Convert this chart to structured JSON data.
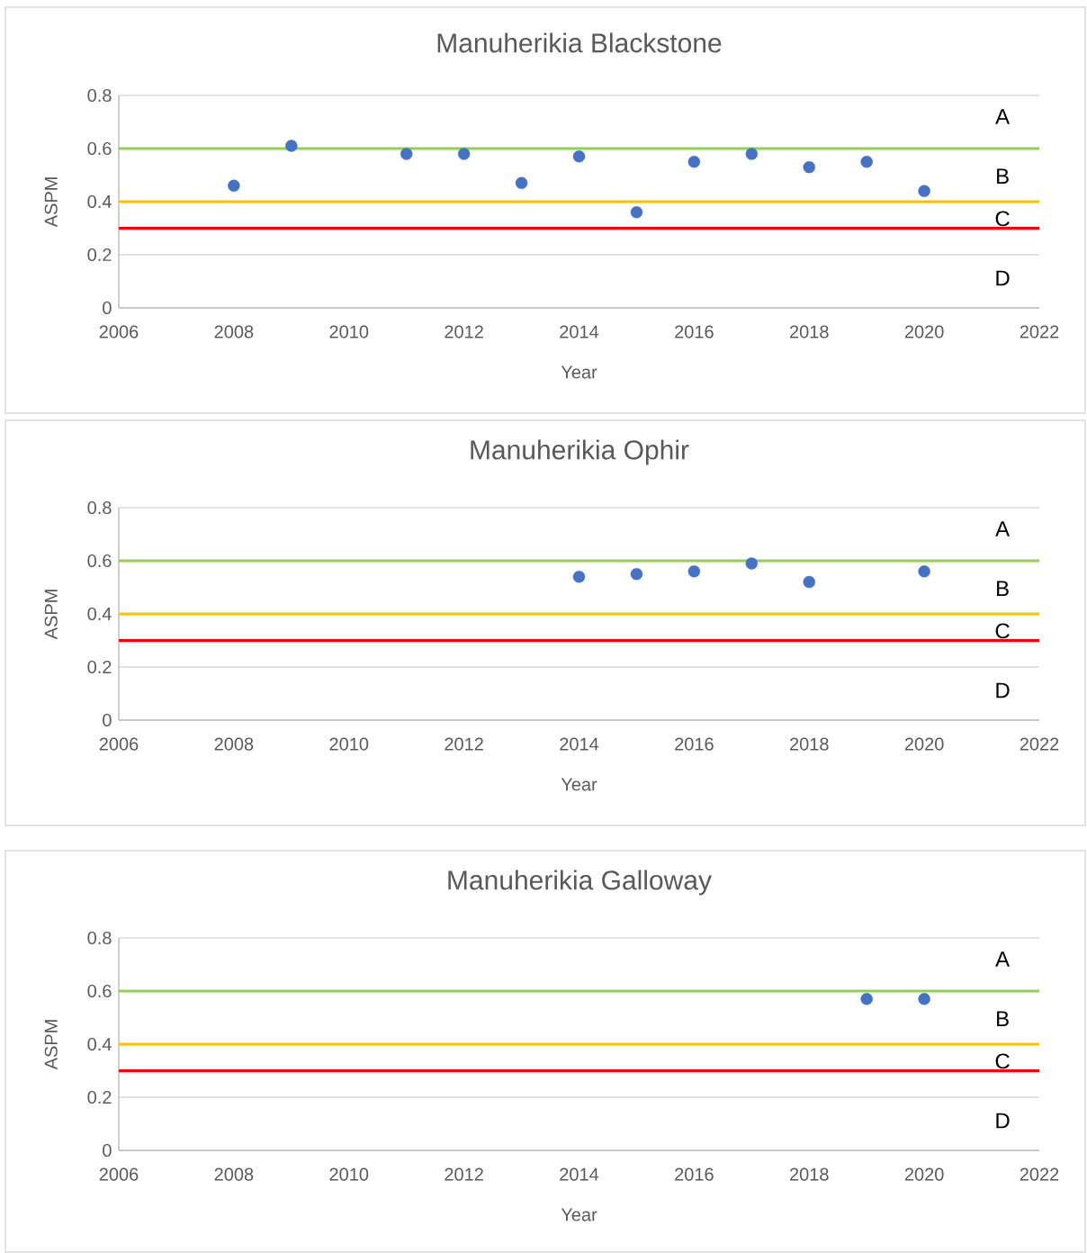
{
  "chart_data": [
    {
      "type": "scatter",
      "title": "Manuherikia Blackstone",
      "xlabel": "Year",
      "ylabel": "ASPM",
      "color": "#4472c4",
      "grid": "y",
      "x": [
        2008,
        2009,
        2011,
        2012,
        2013,
        2014,
        2015,
        2016,
        2017,
        2018,
        2019,
        2020
      ],
      "values": [
        0.46,
        0.61,
        0.58,
        0.58,
        0.47,
        0.57,
        0.36,
        0.55,
        0.58,
        0.53,
        0.55,
        0.44
      ],
      "xlim": [
        2006,
        2022
      ],
      "ylim": [
        0,
        0.8
      ],
      "xticks": [
        2006,
        2008,
        2010,
        2012,
        2014,
        2016,
        2018,
        2020,
        2022
      ],
      "yticks": [
        0,
        0.2,
        0.4,
        0.6,
        0.8
      ],
      "ref_lines": [
        {
          "axis": "y",
          "value": 0.6,
          "color": "#92d050"
        },
        {
          "axis": "y",
          "value": 0.4,
          "color": "#ffc000"
        },
        {
          "axis": "y",
          "value": 0.3,
          "color": "#ff0000"
        }
      ],
      "annotations": [
        "A",
        "B",
        "C",
        "D"
      ]
    },
    {
      "type": "scatter",
      "title": "Manuherikia Ophir",
      "xlabel": "Year",
      "ylabel": "ASPM",
      "color": "#4472c4",
      "grid": "y",
      "x": [
        2014,
        2015,
        2016,
        2017,
        2018,
        2020
      ],
      "values": [
        0.54,
        0.55,
        0.56,
        0.59,
        0.52,
        0.56
      ],
      "xlim": [
        2006,
        2022
      ],
      "ylim": [
        0,
        0.8
      ],
      "xticks": [
        2006,
        2008,
        2010,
        2012,
        2014,
        2016,
        2018,
        2020,
        2022
      ],
      "yticks": [
        0,
        0.2,
        0.4,
        0.6,
        0.8
      ],
      "ref_lines": [
        {
          "axis": "y",
          "value": 0.6,
          "color": "#92d050"
        },
        {
          "axis": "y",
          "value": 0.4,
          "color": "#ffc000"
        },
        {
          "axis": "y",
          "value": 0.3,
          "color": "#ff0000"
        }
      ],
      "annotations": [
        "A",
        "B",
        "C",
        "D"
      ]
    },
    {
      "type": "scatter",
      "title": "Manuherikia Galloway",
      "xlabel": "Year",
      "ylabel": "ASPM",
      "color": "#4472c4",
      "grid": "y",
      "x": [
        2019,
        2020
      ],
      "values": [
        0.57,
        0.57
      ],
      "xlim": [
        2006,
        2022
      ],
      "ylim": [
        0,
        0.8
      ],
      "xticks": [
        2006,
        2008,
        2010,
        2012,
        2014,
        2016,
        2018,
        2020,
        2022
      ],
      "yticks": [
        0,
        0.2,
        0.4,
        0.6,
        0.8
      ],
      "ref_lines": [
        {
          "axis": "y",
          "value": 0.6,
          "color": "#92d050"
        },
        {
          "axis": "y",
          "value": 0.4,
          "color": "#ffc000"
        },
        {
          "axis": "y",
          "value": 0.3,
          "color": "#ff0000"
        }
      ],
      "annotations": [
        "A",
        "B",
        "C",
        "D"
      ]
    }
  ]
}
